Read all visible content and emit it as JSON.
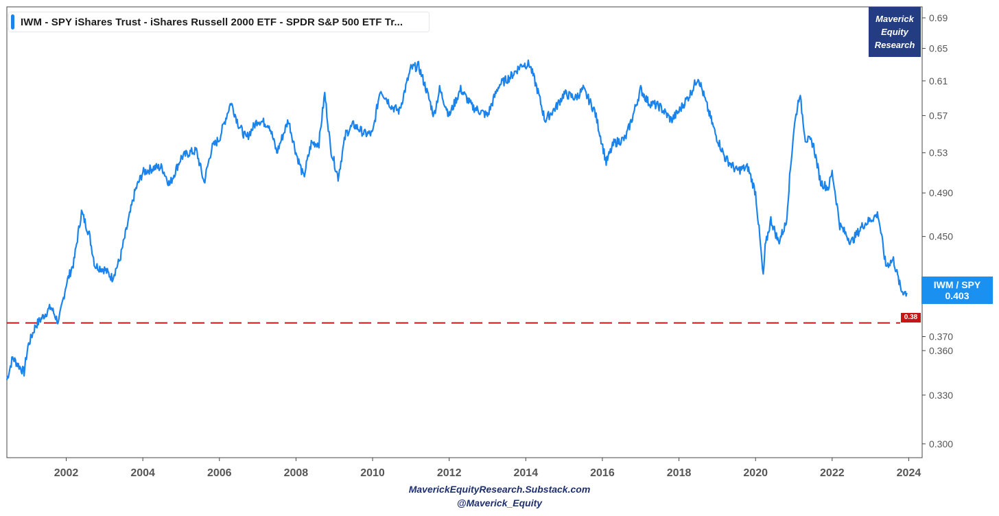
{
  "legend": {
    "label": "IWM - SPY   iShares Trust - iShares Russell 2000 ETF - SPDR S&P 500 ETF Tr..."
  },
  "badge": {
    "line1": "Maverick",
    "line2": "Equity",
    "line3": "Research"
  },
  "value_tag": {
    "line1": "IWM / SPY",
    "line2": "0.403"
  },
  "level_tag": {
    "label": "0.38"
  },
  "credits": {
    "line1": "MaverickEquityResearch.Substack.com",
    "line2": "@Maverick_Equity"
  },
  "colors": {
    "series": "#1a84ec",
    "level_line": "#c51515",
    "badge": "#243c82",
    "value_tag": "#1a90f0"
  },
  "chart_data": {
    "type": "line",
    "title": "",
    "xlabel": "",
    "ylabel": "",
    "y_scale": "log",
    "xlim": [
      2000.45,
      2024.35
    ],
    "ylim": [
      0.292,
      0.705
    ],
    "x_ticks": [
      "2002",
      "2004",
      "2006",
      "2008",
      "2010",
      "2012",
      "2014",
      "2016",
      "2018",
      "2020",
      "2022",
      "2024"
    ],
    "y_ticks": [
      "0.300",
      "0.330",
      "0.360",
      "0.370",
      "0.450",
      "0.490",
      "0.53",
      "0.57",
      "0.61",
      "0.65",
      "0.69"
    ],
    "reference_line": {
      "value": 0.38,
      "label": "0.38",
      "style": "dashed"
    },
    "last_value": 0.403,
    "series": [
      {
        "name": "IWM - SPY",
        "x": [
          2000.45,
          2000.6,
          2000.75,
          2000.9,
          2001.0,
          2001.2,
          2001.4,
          2001.6,
          2001.8,
          2002.0,
          2002.2,
          2002.4,
          2002.6,
          2002.75,
          2003.0,
          2003.2,
          2003.4,
          2003.6,
          2003.8,
          2004.0,
          2004.3,
          2004.5,
          2004.7,
          2005.0,
          2005.2,
          2005.4,
          2005.6,
          2005.8,
          2006.0,
          2006.3,
          2006.5,
          2006.7,
          2007.0,
          2007.3,
          2007.5,
          2007.8,
          2008.0,
          2008.2,
          2008.4,
          2008.6,
          2008.75,
          2008.9,
          2009.1,
          2009.3,
          2009.5,
          2009.8,
          2010.0,
          2010.2,
          2010.5,
          2010.7,
          2011.0,
          2011.2,
          2011.4,
          2011.6,
          2011.75,
          2012.0,
          2012.3,
          2012.6,
          2013.0,
          2013.3,
          2013.6,
          2013.9,
          2014.1,
          2014.3,
          2014.5,
          2014.8,
          2015.0,
          2015.3,
          2015.5,
          2015.8,
          2016.1,
          2016.3,
          2016.6,
          2016.8,
          2017.0,
          2017.2,
          2017.5,
          2017.8,
          2018.0,
          2018.3,
          2018.5,
          2018.7,
          2018.95,
          2019.2,
          2019.5,
          2019.8,
          2020.0,
          2020.2,
          2020.25,
          2020.4,
          2020.6,
          2020.8,
          2021.0,
          2021.15,
          2021.3,
          2021.5,
          2021.7,
          2021.9,
          2022.0,
          2022.2,
          2022.5,
          2022.8,
          2023.0,
          2023.2,
          2023.4,
          2023.6,
          2023.8,
          2023.95
        ],
        "y": [
          0.34,
          0.355,
          0.35,
          0.345,
          0.363,
          0.378,
          0.385,
          0.392,
          0.38,
          0.41,
          0.428,
          0.472,
          0.452,
          0.425,
          0.422,
          0.415,
          0.43,
          0.46,
          0.492,
          0.51,
          0.515,
          0.515,
          0.498,
          0.525,
          0.53,
          0.532,
          0.5,
          0.535,
          0.545,
          0.585,
          0.56,
          0.545,
          0.565,
          0.56,
          0.53,
          0.565,
          0.53,
          0.505,
          0.54,
          0.54,
          0.595,
          0.535,
          0.505,
          0.55,
          0.56,
          0.55,
          0.55,
          0.6,
          0.58,
          0.575,
          0.625,
          0.628,
          0.6,
          0.57,
          0.6,
          0.57,
          0.6,
          0.58,
          0.57,
          0.605,
          0.615,
          0.63,
          0.63,
          0.6,
          0.565,
          0.58,
          0.595,
          0.59,
          0.6,
          0.575,
          0.52,
          0.54,
          0.545,
          0.57,
          0.6,
          0.585,
          0.58,
          0.565,
          0.575,
          0.595,
          0.615,
          0.585,
          0.55,
          0.525,
          0.512,
          0.515,
          0.49,
          0.415,
          0.44,
          0.465,
          0.445,
          0.462,
          0.555,
          0.595,
          0.545,
          0.54,
          0.5,
          0.495,
          0.51,
          0.46,
          0.445,
          0.46,
          0.465,
          0.47,
          0.425,
          0.43,
          0.405,
          0.403
        ]
      }
    ]
  }
}
